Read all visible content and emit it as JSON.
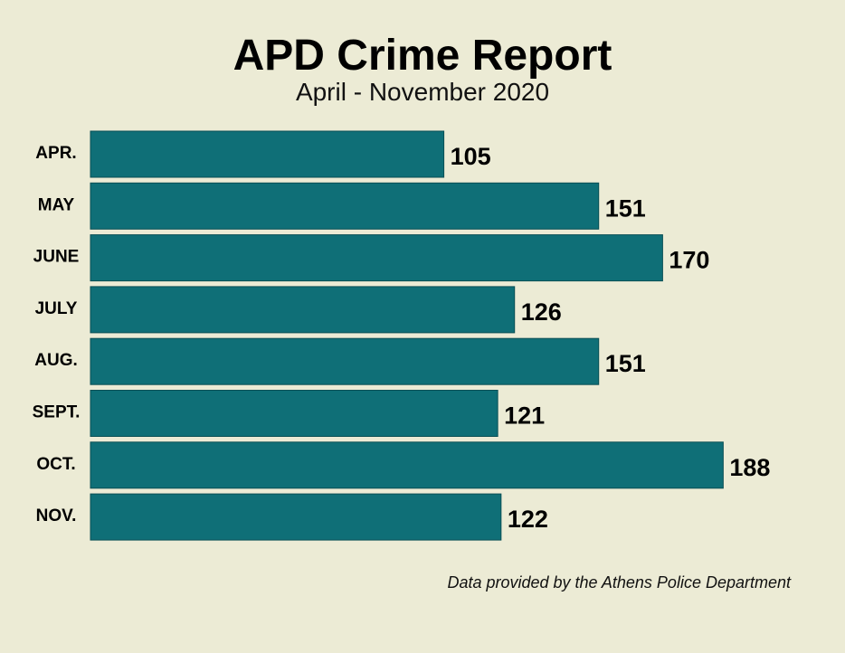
{
  "chart_data": {
    "type": "bar",
    "orientation": "horizontal",
    "title": "APD Crime Report",
    "subtitle": "April - November 2020",
    "categories": [
      "APR.",
      "MAY",
      "JUNE",
      "JULY",
      "AUG.",
      "SEPT.",
      "OCT.",
      "NOV."
    ],
    "values": [
      105,
      151,
      170,
      126,
      151,
      121,
      188,
      122
    ],
    "xlim": [
      0,
      190
    ],
    "grid": false,
    "bar_color": "#0f6f77",
    "data_labels": true
  },
  "footer": {
    "source": "Data provided by the Athens Police Department"
  }
}
